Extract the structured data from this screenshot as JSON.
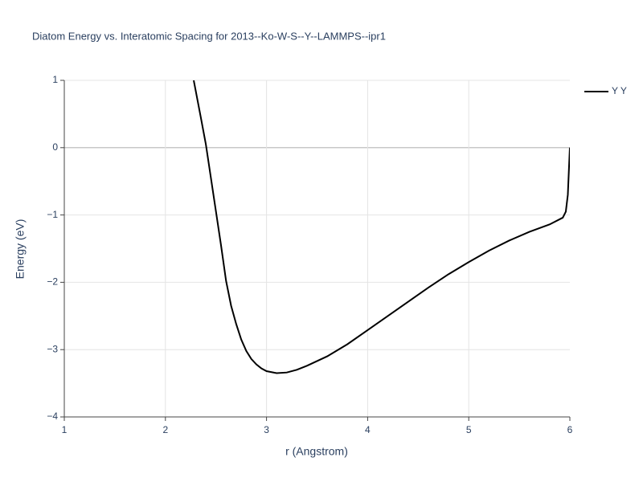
{
  "chart_data": {
    "type": "line",
    "title": "Diatom Energy vs. Interatomic Spacing for 2013--Ko-W-S--Y--LAMMPS--ipr1",
    "xlabel": "r (Angstrom)",
    "ylabel": "Energy (eV)",
    "x": [
      2.28,
      2.35,
      2.4,
      2.45,
      2.5,
      2.55,
      2.6,
      2.65,
      2.7,
      2.75,
      2.8,
      2.85,
      2.9,
      2.95,
      3.0,
      3.1,
      3.2,
      3.3,
      3.4,
      3.6,
      3.8,
      4.0,
      4.2,
      4.4,
      4.6,
      4.8,
      5.0,
      5.2,
      5.4,
      5.6,
      5.8,
      5.93,
      5.96,
      5.98,
      6.0
    ],
    "series": [
      {
        "name": "Y Y",
        "color": "#000000",
        "values": [
          1.0,
          0.45,
          0.05,
          -0.45,
          -0.95,
          -1.45,
          -1.98,
          -2.35,
          -2.62,
          -2.85,
          -3.02,
          -3.14,
          -3.22,
          -3.28,
          -3.32,
          -3.35,
          -3.34,
          -3.3,
          -3.24,
          -3.1,
          -2.92,
          -2.71,
          -2.5,
          -2.29,
          -2.08,
          -1.88,
          -1.7,
          -1.53,
          -1.38,
          -1.25,
          -1.14,
          -1.04,
          -0.95,
          -0.7,
          0.0
        ]
      }
    ],
    "xlim": [
      1,
      6
    ],
    "xticks": [
      1,
      2,
      3,
      4,
      5,
      6
    ],
    "ylim": [
      -4,
      1
    ],
    "yticks": [
      {
        "value": -4,
        "label": "−4"
      },
      {
        "value": -3,
        "label": "−3"
      },
      {
        "value": -2,
        "label": "−2"
      },
      {
        "value": -1,
        "label": "−1"
      },
      0,
      1
    ],
    "grid": true,
    "legend": "right"
  }
}
